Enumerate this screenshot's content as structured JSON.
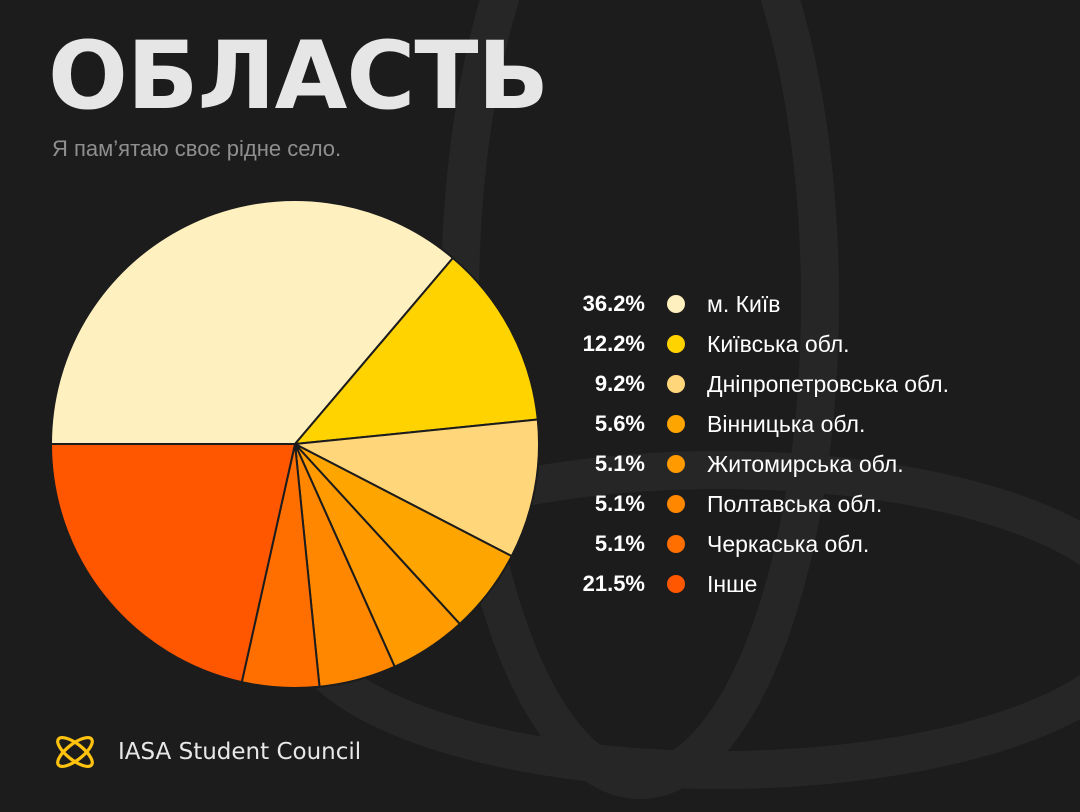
{
  "header": {
    "title": "ОБЛАСТЬ",
    "subtitle": "Я пам’ятаю своє рідне село."
  },
  "chart_data": {
    "type": "pie",
    "title": "ОБЛАСТЬ",
    "subtitle": "Я пам’ятаю своє рідне село.",
    "start": "9 o'clock",
    "direction": "clockwise",
    "legend_position": "right",
    "slices": [
      {
        "label": "м. Київ",
        "value": 36.2,
        "value_label": "36.2%",
        "color": "#fff0c0"
      },
      {
        "label": "Київська обл.",
        "value": 12.2,
        "value_label": "12.2%",
        "color": "#ffd300"
      },
      {
        "label": "Дніпропетровська обл.",
        "value": 9.2,
        "value_label": "9.2%",
        "color": "#ffd77a"
      },
      {
        "label": "Вінницька обл.",
        "value": 5.6,
        "value_label": "5.6%",
        "color": "#ffa500"
      },
      {
        "label": "Житомирська обл.",
        "value": 5.1,
        "value_label": "5.1%",
        "color": "#ff9a00"
      },
      {
        "label": "Полтавська обл.",
        "value": 5.1,
        "value_label": "5.1%",
        "color": "#ff8700"
      },
      {
        "label": "Черкаська обл.",
        "value": 5.1,
        "value_label": "5.1%",
        "color": "#ff6f00"
      },
      {
        "label": "Інше",
        "value": 21.5,
        "value_label": "21.5%",
        "color": "#ff5700"
      }
    ]
  },
  "footer": {
    "brand": "IASA Student Council",
    "logo_icon": "orbit-logo-icon",
    "logo_color": "#ffc20e"
  }
}
